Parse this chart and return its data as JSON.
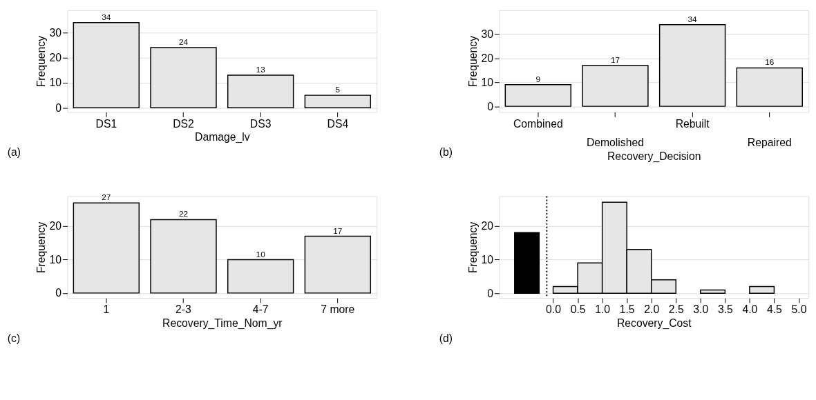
{
  "chart_data": [
    {
      "type": "bar",
      "categories": [
        "DS1",
        "DS2",
        "DS3",
        "DS4"
      ],
      "values": [
        34,
        24,
        13,
        5
      ],
      "color": "#e6e6e6",
      "xlabel": "Damage_lv",
      "ylabel": "Frequency",
      "ylim": [
        -1.7,
        38.9
      ],
      "yticks": [
        0,
        10,
        20,
        30
      ],
      "grid": "y",
      "data_labels": true,
      "annotations": [
        "(a)"
      ]
    },
    {
      "type": "bar",
      "categories": [
        "Combined",
        "Demolished",
        "Rebuilt",
        "Repaired"
      ],
      "values": [
        9,
        17,
        34,
        16
      ],
      "color": "#e6e6e6",
      "xlabel": "Recovery_Decision",
      "ylabel": "Frequency",
      "ylim": [
        -2.4,
        40
      ],
      "yticks": [
        0,
        10,
        20,
        30
      ],
      "grid": "y",
      "data_labels": true,
      "annotations": [
        "(b)"
      ]
    },
    {
      "type": "bar",
      "categories": [
        "1",
        "2-3",
        "4-7",
        "7 more"
      ],
      "values": [
        27,
        22,
        10,
        17
      ],
      "color": "#e6e6e6",
      "xlabel": "Recovery_Time_Nom_yr",
      "ylabel": "Frequency",
      "ylim": [
        -1.5,
        29
      ],
      "yticks": [
        0,
        10,
        20
      ],
      "grid": "y",
      "data_labels": true,
      "annotations": [
        "(c)"
      ]
    },
    {
      "type": "histogram",
      "xlabel": "Recovery_Cost",
      "ylabel": "Frequency",
      "xlim": [
        -1.1,
        5.2
      ],
      "ylim": [
        -1.4,
        28.8
      ],
      "yticks": [
        0,
        10,
        20
      ],
      "grid": "y",
      "xticks": [
        {
          "value": 0,
          "label": "0.0"
        },
        0.5,
        {
          "value": 1,
          "label": "1.0"
        },
        1.5,
        {
          "value": 2,
          "label": "2.0"
        },
        2.5,
        {
          "value": 3,
          "label": "3.0"
        },
        3.5,
        {
          "value": 4,
          "label": "4.0"
        },
        4.5,
        {
          "value": 5,
          "label": "5.0"
        }
      ],
      "bins": [
        0,
        0.5,
        1,
        1.5,
        2,
        2.5,
        3,
        3.5,
        4,
        4.5,
        5
      ],
      "values": [
        2,
        9,
        27,
        13,
        4,
        0,
        1,
        0,
        2,
        0
      ],
      "color": "#e6e6e6",
      "series": [
        {
          "type": "bar",
          "color": "#000000",
          "x": [
            -0.535
          ],
          "values": [
            18
          ]
        }
      ],
      "ref_lines": [
        {
          "axis": "x",
          "value": -0.13,
          "line_style": "dotted"
        }
      ],
      "annotations": [
        "(d)"
      ]
    }
  ]
}
